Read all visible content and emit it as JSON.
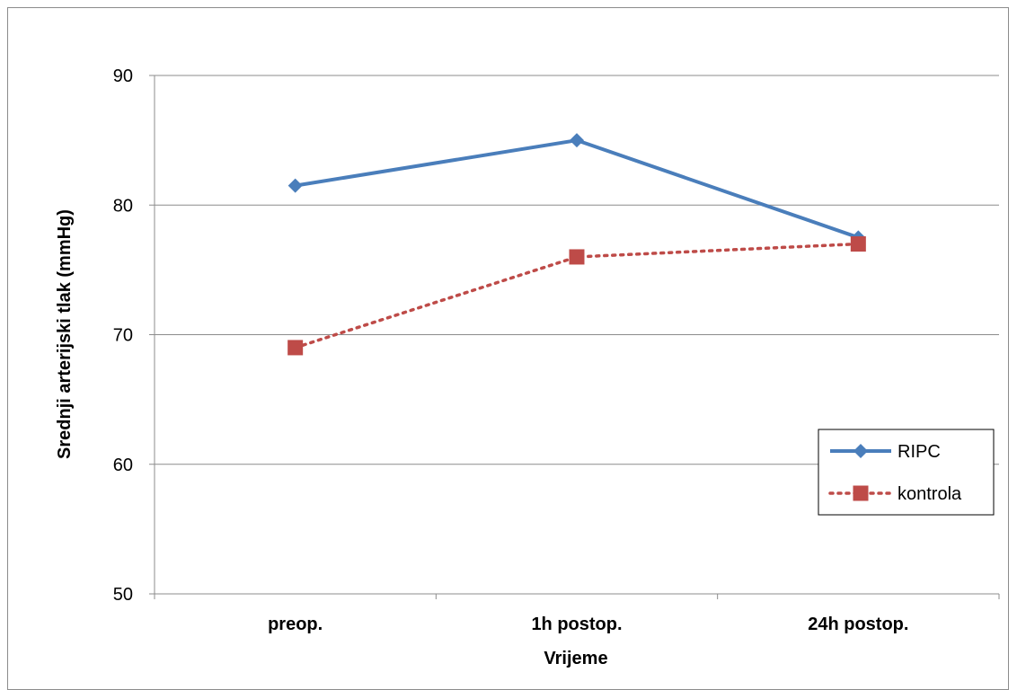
{
  "chart_data": {
    "type": "line",
    "categories": [
      "preop.",
      "1h postop.",
      "24h postop."
    ],
    "series": [
      {
        "name": "RIPC",
        "values": [
          81.5,
          85,
          77.5
        ],
        "color": "#4a7ebb",
        "marker": "diamond",
        "dash": "solid"
      },
      {
        "name": "kontrola",
        "values": [
          69,
          76,
          77
        ],
        "color": "#be4b48",
        "marker": "square",
        "dash": "dotted"
      }
    ],
    "xlabel": "Vrijeme",
    "ylabel": "Srednji arterijski tlak (mmHg)",
    "ylim": [
      50,
      90
    ],
    "yticks": [
      50,
      60,
      70,
      80,
      90
    ],
    "grid": true,
    "legend_position": "right"
  }
}
